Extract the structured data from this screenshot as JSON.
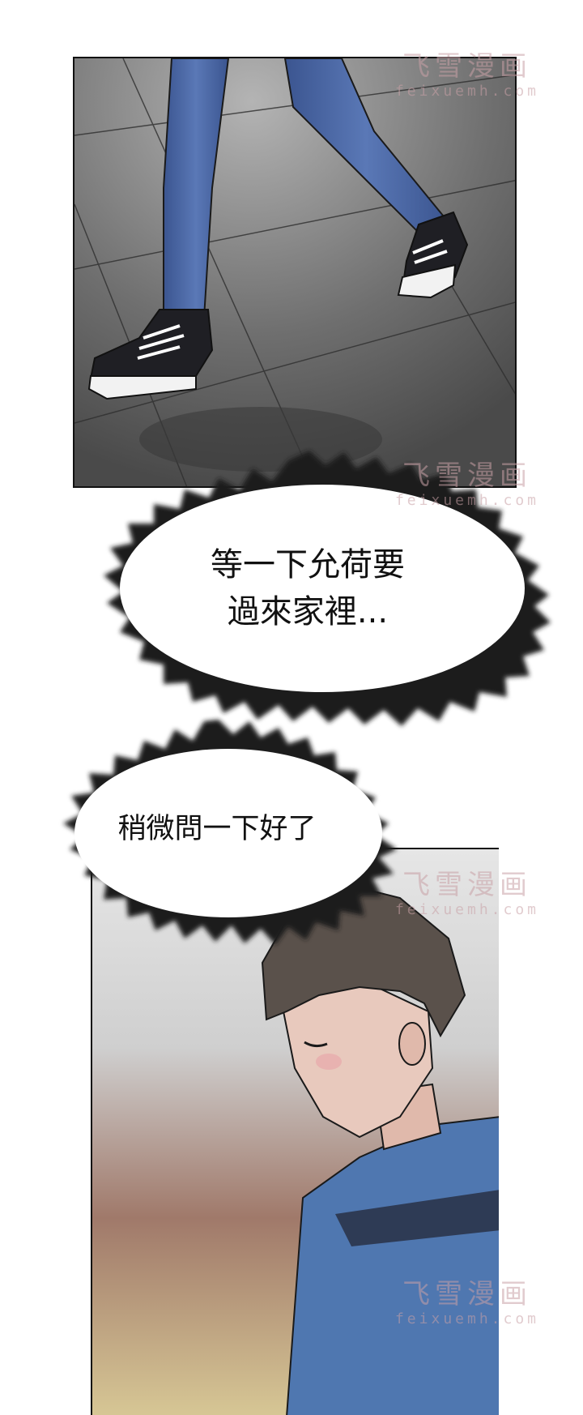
{
  "bubbles": {
    "first": {
      "line1": "等一下允荷要",
      "line2": "過來家裡..."
    },
    "second": {
      "line1": "稍微問一下好了"
    }
  },
  "watermark": {
    "cn": "飞雪漫画",
    "en": "feixuemh.com"
  },
  "colors": {
    "floor": "#6d6d6d",
    "jeans": "#4d6aa8",
    "shirt": "#4f77b0",
    "hair": "#5a514b",
    "skin": "#e8c9bd"
  }
}
